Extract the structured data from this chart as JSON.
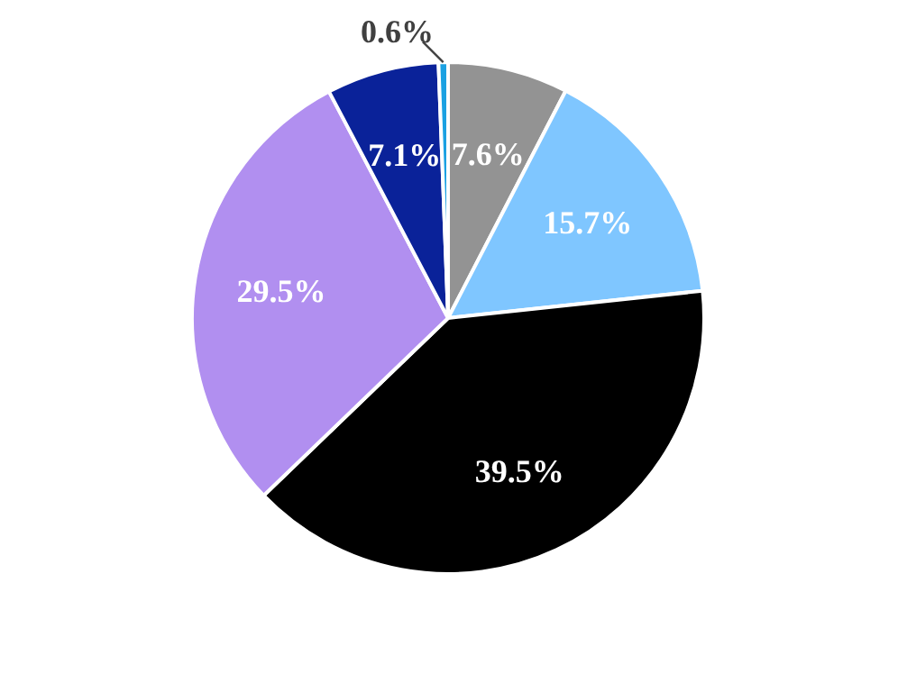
{
  "chart_data": {
    "type": "pie",
    "categories": [
      null,
      null,
      null,
      null,
      null,
      null
    ],
    "values": [
      7.6,
      15.7,
      39.5,
      29.5,
      7.1,
      0.6
    ],
    "colors": [
      "#939393",
      "#7fc6ff",
      "#000000",
      "#b18ff0",
      "#0a2299",
      "#1ba1e2"
    ],
    "value_labels": [
      "7.6%",
      "15.7%",
      "39.5%",
      "29.5%",
      "7.1%",
      "0.6%"
    ]
  }
}
